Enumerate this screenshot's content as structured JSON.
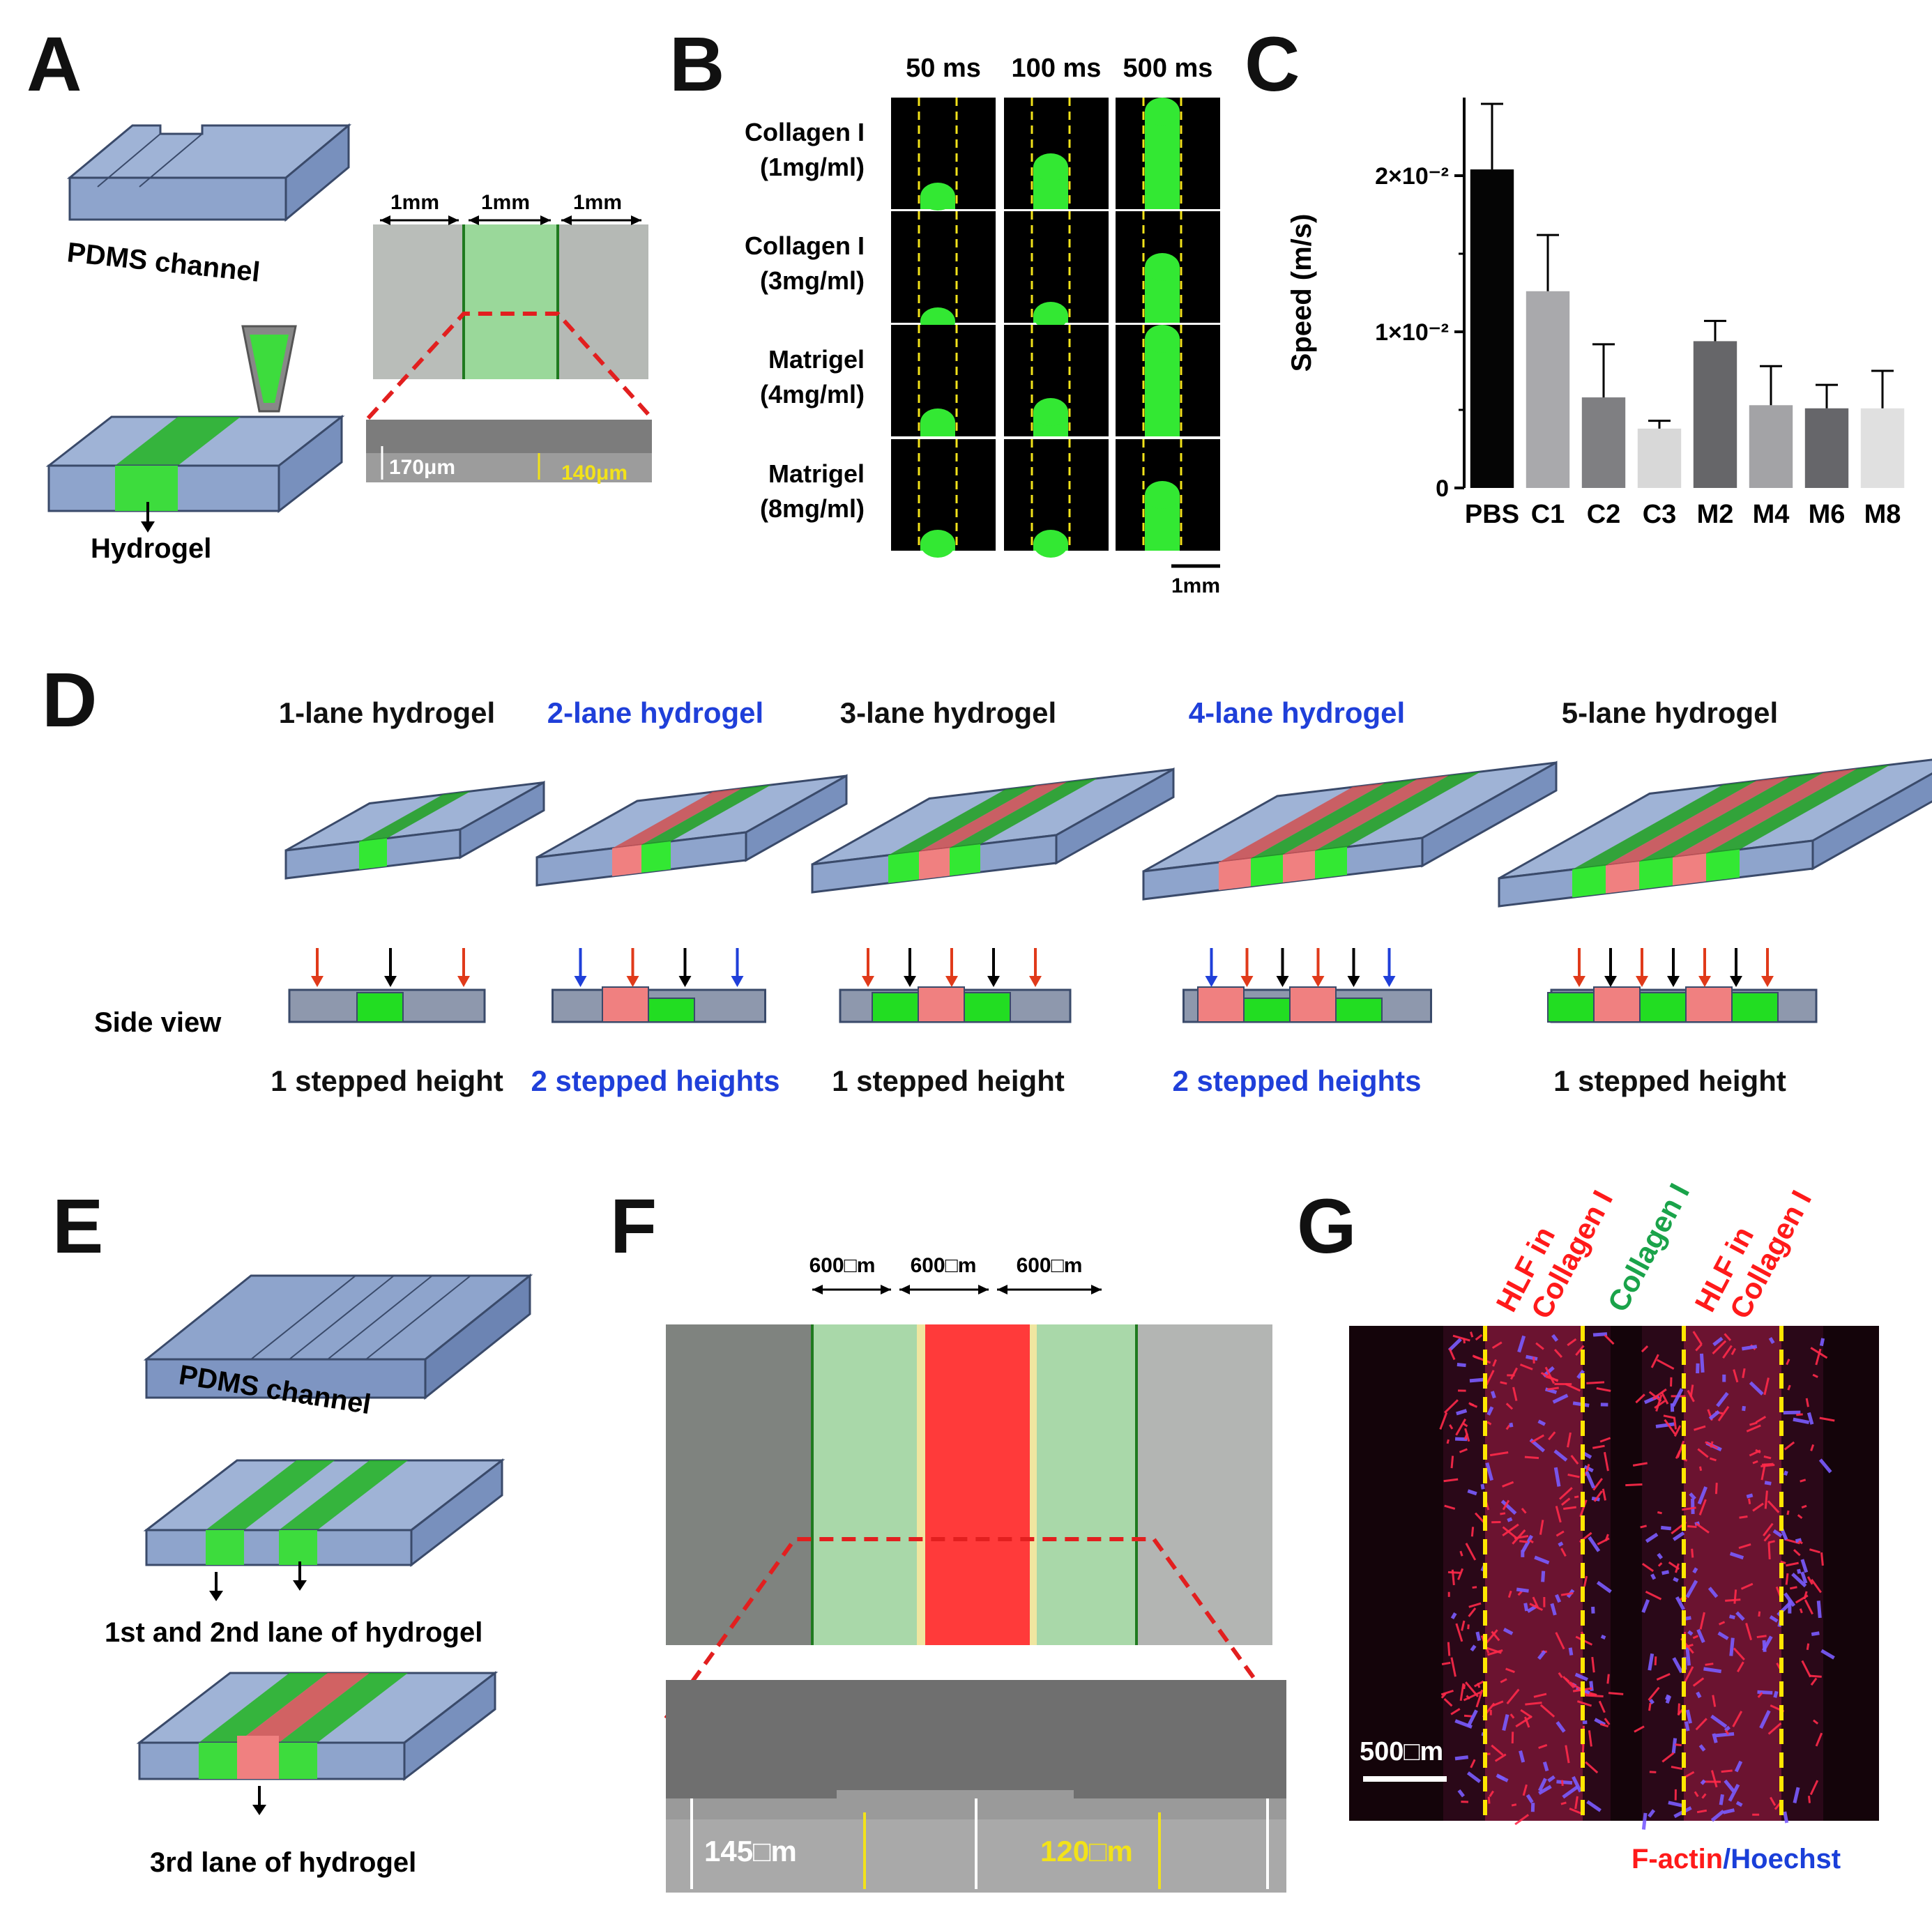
{
  "panels": {
    "a": {
      "label": "A",
      "pdms_label": "PDMS channel",
      "hydrogel_label": "Hydrogel",
      "widths": [
        "1mm",
        "1mm",
        "1mm"
      ],
      "heights": {
        "outer": "170μm",
        "inner": "140μm"
      }
    },
    "b": {
      "label": "B",
      "times": [
        "50 ms",
        "100 ms",
        "500 ms"
      ],
      "rows": [
        {
          "l1": "Collagen I",
          "l2": "(1mg/ml)"
        },
        {
          "l1": "Collagen I",
          "l2": "(3mg/ml)"
        },
        {
          "l1": "Matrigel",
          "l2": "(4mg/ml)"
        },
        {
          "l1": "Matrigel",
          "l2": "(8mg/ml)"
        }
      ],
      "scale_bar": "1mm"
    },
    "c": {
      "label": "C"
    },
    "d": {
      "label": "D",
      "side_view": "Side view",
      "variants": [
        {
          "title": "1-lane hydrogel",
          "height": "1 stepped height",
          "color": "#111111"
        },
        {
          "title": "2-lane hydrogel",
          "height": "2 stepped heights",
          "color": "#1f3fd9"
        },
        {
          "title": "3-lane hydrogel",
          "height": "1 stepped height",
          "color": "#111111"
        },
        {
          "title": "4-lane hydrogel",
          "height": "2 stepped heights",
          "color": "#1f3fd9"
        },
        {
          "title": "5-lane hydrogel",
          "height": "1 stepped height",
          "color": "#111111"
        }
      ]
    },
    "e": {
      "label": "E",
      "pdms_label": "PDMS channel",
      "lane12_label": "1st and 2nd lane of hydrogel",
      "lane3_label": "3rd lane of hydrogel"
    },
    "f": {
      "label": "F",
      "widths": [
        "600□m",
        "600□m",
        "600□m"
      ],
      "heights": {
        "outer": "145□m",
        "inner": "120□m"
      }
    },
    "g": {
      "label": "G",
      "lane_labels": [
        {
          "l1": "HLF in",
          "l2": "Collagen I",
          "color": "#ff1a1a"
        },
        {
          "l1": "Collagen I",
          "l2": "",
          "color": "#1aa34a"
        },
        {
          "l1": "HLF in",
          "l2": "Collagen I",
          "color": "#ff1a1a"
        }
      ],
      "scale_bar": "500□m",
      "stain_factin": "F-actin",
      "stain_sep": "/",
      "stain_hoechst": "Hoechst"
    }
  },
  "chart_data": {
    "type": "bar",
    "categories": [
      "PBS",
      "C1",
      "C2",
      "C3",
      "M2",
      "M4",
      "M6",
      "M8"
    ],
    "values": [
      0.0204,
      0.0126,
      0.0058,
      0.0038,
      0.0094,
      0.0053,
      0.0051,
      0.0051
    ],
    "errors": [
      0.0042,
      0.0036,
      0.0034,
      0.0005,
      0.0013,
      0.0025,
      0.0015,
      0.0024
    ],
    "bar_colors": [
      "#050505",
      "#a9a9ac",
      "#7f7f82",
      "#d8d8d8",
      "#666669",
      "#a3a3a6",
      "#66666a",
      "#e0e0e0"
    ],
    "ylabel": "Speed (m/s)",
    "ylim": [
      0,
      0.025
    ],
    "yticks": [
      0,
      0.01,
      0.02
    ],
    "yticklabels": [
      "0",
      "1×10⁻²",
      "2×10⁻²"
    ]
  }
}
